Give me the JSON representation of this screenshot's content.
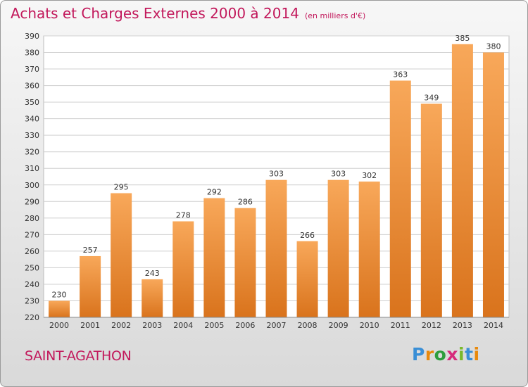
{
  "title": "Achats et Charges Externes 2000 à 2014",
  "unit_note": "(en milliers d'€)",
  "city": "SAINT-AGATHON",
  "brand": {
    "text": "Proxiti",
    "colors": [
      "#3a8fd6",
      "#e8890c",
      "#2e9e3e",
      "#d62b7b",
      "#7ab929",
      "#3a8fd6",
      "#e8890c"
    ]
  },
  "colors": {
    "accent": "#c2185b",
    "bar_light": "#f8a85a",
    "bar_dark": "#d9731c"
  },
  "chart_data": {
    "type": "bar",
    "categories": [
      "2000",
      "2001",
      "2002",
      "2003",
      "2004",
      "2005",
      "2006",
      "2007",
      "2008",
      "2009",
      "2010",
      "2011",
      "2012",
      "2013",
      "2014"
    ],
    "values": [
      230,
      257,
      295,
      243,
      278,
      292,
      286,
      303,
      266,
      303,
      302,
      363,
      349,
      385,
      380
    ],
    "ylim": [
      220,
      390
    ],
    "yticks": [
      220,
      230,
      240,
      250,
      260,
      270,
      280,
      290,
      300,
      310,
      320,
      330,
      340,
      350,
      360,
      370,
      380,
      390
    ],
    "grid": true,
    "title": "Achats et Charges Externes 2000 à 2014",
    "xlabel": "",
    "ylabel": ""
  }
}
